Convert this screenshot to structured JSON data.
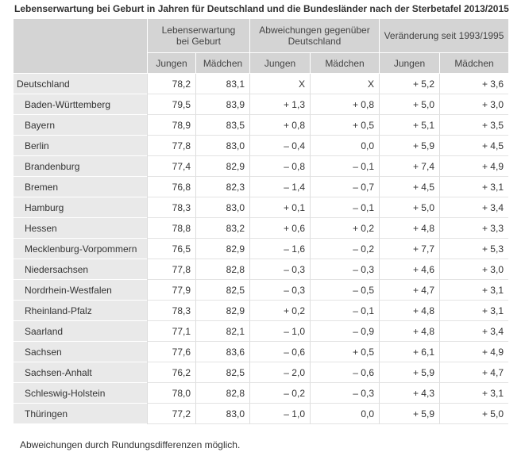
{
  "title": "Lebenserwartung bei Geburt in Jahren für Deutschland und die Bundesländer nach der Sterbetafel 2013/2015",
  "headers": {
    "group1": "Lebenserwartung bei Geburt",
    "group2": "Abweichungen gegenüber Deutschland",
    "group3": "Veränderung seit 1993/1995",
    "jungen": "Jungen",
    "maedchen": "Mädchen"
  },
  "rows": [
    {
      "name": "Deutschland",
      "le_j": "78,2",
      "le_m": "83,1",
      "ab_j": "X",
      "ab_m": "X",
      "ve_j": "+ 5,2",
      "ve_m": "+ 3,6"
    },
    {
      "name": "Baden-Württemberg",
      "le_j": "79,5",
      "le_m": "83,9",
      "ab_j": "+ 1,3",
      "ab_m": "+ 0,8",
      "ve_j": "+ 5,0",
      "ve_m": "+ 3,0"
    },
    {
      "name": "Bayern",
      "le_j": "78,9",
      "le_m": "83,5",
      "ab_j": "+ 0,8",
      "ab_m": "+ 0,5",
      "ve_j": "+ 5,1",
      "ve_m": "+ 3,5"
    },
    {
      "name": "Berlin",
      "le_j": "77,8",
      "le_m": "83,0",
      "ab_j": "– 0,4",
      "ab_m": "0,0",
      "ve_j": "+ 5,9",
      "ve_m": "+ 4,5"
    },
    {
      "name": "Brandenburg",
      "le_j": "77,4",
      "le_m": "82,9",
      "ab_j": "– 0,8",
      "ab_m": "– 0,1",
      "ve_j": "+ 7,4",
      "ve_m": "+ 4,9"
    },
    {
      "name": "Bremen",
      "le_j": "76,8",
      "le_m": "82,3",
      "ab_j": "– 1,4",
      "ab_m": "– 0,7",
      "ve_j": "+ 4,5",
      "ve_m": "+ 3,1"
    },
    {
      "name": "Hamburg",
      "le_j": "78,3",
      "le_m": "83,0",
      "ab_j": "+ 0,1",
      "ab_m": "– 0,1",
      "ve_j": "+ 5,0",
      "ve_m": "+ 3,4"
    },
    {
      "name": "Hessen",
      "le_j": "78,8",
      "le_m": "83,2",
      "ab_j": "+ 0,6",
      "ab_m": "+ 0,2",
      "ve_j": "+ 4,8",
      "ve_m": "+ 3,3"
    },
    {
      "name": "Mecklenburg-Vorpommern",
      "le_j": "76,5",
      "le_m": "82,9",
      "ab_j": "– 1,6",
      "ab_m": "– 0,2",
      "ve_j": "+ 7,7",
      "ve_m": "+ 5,3"
    },
    {
      "name": "Niedersachsen",
      "le_j": "77,8",
      "le_m": "82,8",
      "ab_j": "– 0,3",
      "ab_m": "– 0,3",
      "ve_j": "+ 4,6",
      "ve_m": "+ 3,0"
    },
    {
      "name": "Nordrhein-Westfalen",
      "le_j": "77,9",
      "le_m": "82,5",
      "ab_j": "– 0,3",
      "ab_m": "– 0,5",
      "ve_j": "+ 4,7",
      "ve_m": "+ 3,1"
    },
    {
      "name": "Rheinland-Pfalz",
      "le_j": "78,3",
      "le_m": "82,9",
      "ab_j": "+ 0,2",
      "ab_m": "– 0,1",
      "ve_j": "+ 4,8",
      "ve_m": "+ 3,1"
    },
    {
      "name": "Saarland",
      "le_j": "77,1",
      "le_m": "82,1",
      "ab_j": "– 1,0",
      "ab_m": "– 0,9",
      "ve_j": "+ 4,8",
      "ve_m": "+ 3,4"
    },
    {
      "name": "Sachsen",
      "le_j": "77,6",
      "le_m": "83,6",
      "ab_j": "– 0,6",
      "ab_m": "+ 0,5",
      "ve_j": "+ 6,1",
      "ve_m": "+ 4,9"
    },
    {
      "name": "Sachsen-Anhalt",
      "le_j": "76,2",
      "le_m": "82,5",
      "ab_j": "– 2,0",
      "ab_m": "– 0,6",
      "ve_j": "+ 5,9",
      "ve_m": "+ 4,7"
    },
    {
      "name": "Schleswig-Holstein",
      "le_j": "78,0",
      "le_m": "82,8",
      "ab_j": "– 0,2",
      "ab_m": "– 0,3",
      "ve_j": "+ 4,3",
      "ve_m": "+ 3,1"
    },
    {
      "name": "Thüringen",
      "le_j": "77,2",
      "le_m": "83,0",
      "ab_j": "– 1,0",
      "ab_m": "0,0",
      "ve_j": "+ 5,9",
      "ve_m": "+ 5,0"
    }
  ],
  "note": "Abweichungen durch Rundungsdifferenzen möglich."
}
